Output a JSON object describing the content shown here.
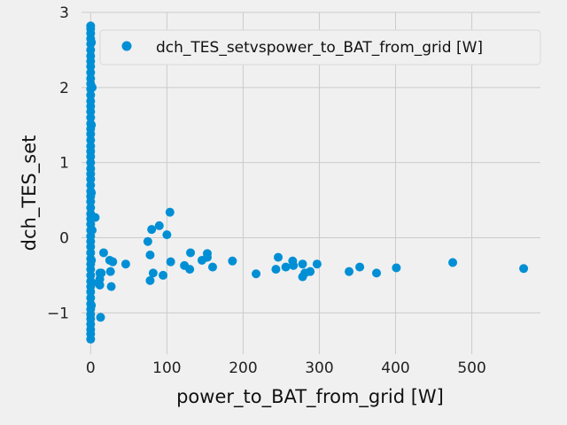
{
  "chart_data": {
    "type": "scatter",
    "title": "",
    "xlabel": "power_to_BAT_from_grid [W]",
    "ylabel": "dch_TES_set",
    "xlim": [
      -12,
      590
    ],
    "ylim": [
      -1.55,
      3.0
    ],
    "xticks": [
      0,
      100,
      200,
      300,
      400,
      500
    ],
    "yticks": [
      -1,
      0,
      1,
      2,
      3
    ],
    "grid": true,
    "legend": "top-right",
    "color": "#008fd5",
    "series": [
      {
        "name": "dch_TES_setvspower_to_BAT_from_grid [W]",
        "points": [
          [
            0,
            2.82
          ],
          [
            0,
            2.78
          ],
          [
            0,
            2.72
          ],
          [
            0,
            2.65
          ],
          [
            0,
            2.58
          ],
          [
            0,
            2.5
          ],
          [
            0,
            2.42
          ],
          [
            0,
            2.35
          ],
          [
            0,
            2.28
          ],
          [
            0,
            2.2
          ],
          [
            0,
            2.12
          ],
          [
            0,
            2.05
          ],
          [
            0,
            1.98
          ],
          [
            0,
            1.9
          ],
          [
            0,
            1.82
          ],
          [
            0,
            1.75
          ],
          [
            0,
            1.68
          ],
          [
            0,
            1.6
          ],
          [
            0,
            1.52
          ],
          [
            0,
            1.45
          ],
          [
            0,
            1.38
          ],
          [
            0,
            1.3
          ],
          [
            0,
            1.22
          ],
          [
            0,
            1.15
          ],
          [
            0,
            1.08
          ],
          [
            0,
            1.0
          ],
          [
            0,
            0.92
          ],
          [
            0,
            0.85
          ],
          [
            0,
            0.78
          ],
          [
            0,
            0.7
          ],
          [
            0,
            0.62
          ],
          [
            0,
            0.55
          ],
          [
            0,
            0.48
          ],
          [
            0,
            0.4
          ],
          [
            0,
            0.32
          ],
          [
            0,
            0.25
          ],
          [
            0,
            0.18
          ],
          [
            0,
            0.1
          ],
          [
            0,
            0.02
          ],
          [
            0,
            -0.05
          ],
          [
            0,
            -0.12
          ],
          [
            0,
            -0.2
          ],
          [
            0,
            -0.28
          ],
          [
            0,
            -0.35
          ],
          [
            0,
            -0.42
          ],
          [
            0,
            -0.5
          ],
          [
            0,
            -0.58
          ],
          [
            0,
            -0.65
          ],
          [
            0,
            -0.72
          ],
          [
            0,
            -0.8
          ],
          [
            0,
            -0.88
          ],
          [
            0,
            -0.95
          ],
          [
            0,
            -1.02
          ],
          [
            0,
            -1.08
          ],
          [
            0,
            -1.15
          ],
          [
            0,
            -1.22
          ],
          [
            0,
            -1.28
          ],
          [
            0,
            -1.35
          ],
          [
            1,
            2.6
          ],
          [
            1,
            1.5
          ],
          [
            1,
            0.6
          ],
          [
            1,
            -0.3
          ],
          [
            1,
            -0.9
          ],
          [
            2,
            2.0
          ],
          [
            2,
            0.1
          ],
          [
            2,
            -0.6
          ],
          [
            6,
            0.27
          ],
          [
            12,
            -0.47
          ],
          [
            12,
            -0.55
          ],
          [
            12,
            -0.63
          ],
          [
            14,
            -0.47
          ],
          [
            13,
            -1.06
          ],
          [
            17,
            -0.2
          ],
          [
            25,
            -0.3
          ],
          [
            26,
            -0.45
          ],
          [
            27,
            -0.65
          ],
          [
            29,
            -0.32
          ],
          [
            46,
            -0.35
          ],
          [
            75,
            -0.05
          ],
          [
            78,
            -0.23
          ],
          [
            78,
            -0.57
          ],
          [
            80,
            0.11
          ],
          [
            82,
            -0.47
          ],
          [
            90,
            0.16
          ],
          [
            95,
            -0.5
          ],
          [
            100,
            0.04
          ],
          [
            104,
            0.34
          ],
          [
            105,
            -0.32
          ],
          [
            123,
            -0.37
          ],
          [
            131,
            -0.2
          ],
          [
            130,
            -0.42
          ],
          [
            146,
            -0.3
          ],
          [
            153,
            -0.21
          ],
          [
            153,
            -0.26
          ],
          [
            160,
            -0.39
          ],
          [
            186,
            -0.31
          ],
          [
            217,
            -0.48
          ],
          [
            243,
            -0.42
          ],
          [
            246,
            -0.26
          ],
          [
            256,
            -0.39
          ],
          [
            265,
            -0.31
          ],
          [
            266,
            -0.37
          ],
          [
            278,
            -0.35
          ],
          [
            278,
            -0.52
          ],
          [
            281,
            -0.47
          ],
          [
            288,
            -0.45
          ],
          [
            297,
            -0.35
          ],
          [
            339,
            -0.45
          ],
          [
            353,
            -0.39
          ],
          [
            375,
            -0.47
          ],
          [
            401,
            -0.4
          ],
          [
            475,
            -0.33
          ],
          [
            568,
            -0.41
          ]
        ]
      }
    ]
  }
}
